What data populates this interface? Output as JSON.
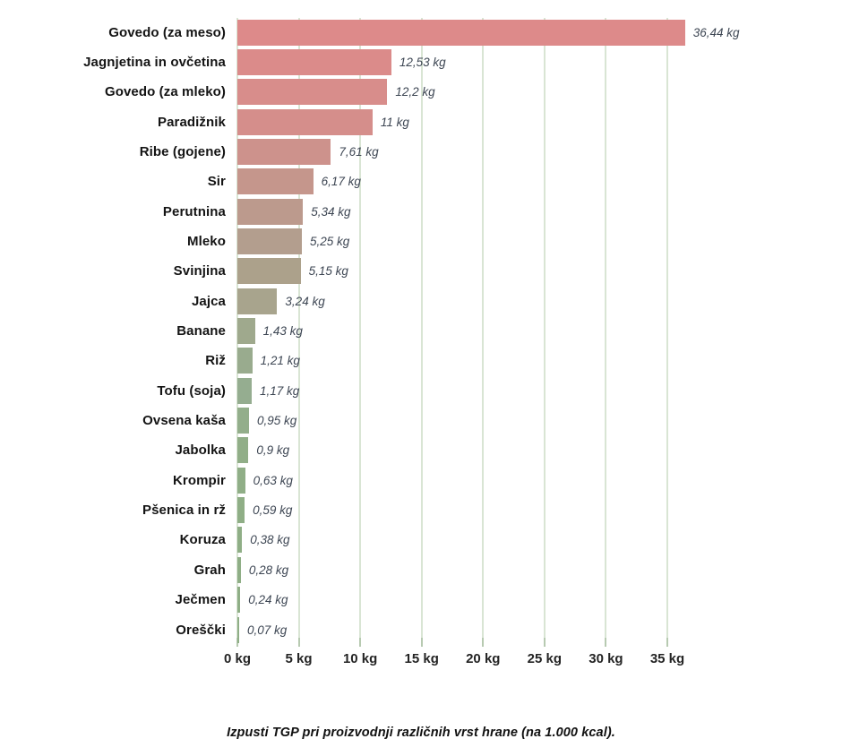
{
  "caption": "Izpusti TGP pri proizvodnji različnih vrst hrane (na 1.000 kcal).",
  "chart_data": {
    "type": "bar",
    "orientation": "horizontal",
    "title": "",
    "caption": "Izpusti TGP pri proizvodnji različnih vrst hrane (na 1.000 kcal).",
    "xlabel": "",
    "ylabel": "",
    "unit": "kg",
    "xlim": [
      0,
      36.8
    ],
    "grid": true,
    "categories": [
      "Govedo (za meso)",
      "Jagnjetina in ovčetina",
      "Govedo (za mleko)",
      "Paradižnik",
      "Ribe (gojene)",
      "Sir",
      "Perutnina",
      "Mleko",
      "Svinjina",
      "Jajca",
      "Banane",
      "Riž",
      "Tofu (soja)",
      "Ovsena kaša",
      "Jabolka",
      "Krompir",
      "Pšenica in rž",
      "Koruza",
      "Grah",
      "Ječmen",
      "Oreščki"
    ],
    "values": [
      36.44,
      12.53,
      12.2,
      11,
      7.61,
      6.17,
      5.34,
      5.25,
      5.15,
      3.24,
      1.43,
      1.21,
      1.17,
      0.95,
      0.9,
      0.63,
      0.59,
      0.38,
      0.28,
      0.24,
      0.07
    ],
    "value_labels": [
      "36,44 kg",
      "12,53 kg",
      "12,2 kg",
      "11 kg",
      "7,61 kg",
      "6,17 kg",
      "5,34 kg",
      "5,25 kg",
      "5,15 kg",
      "3,24 kg",
      "1,43 kg",
      "1,21 kg",
      "1,17 kg",
      "0,95 kg",
      "0,9 kg",
      "0,63 kg",
      "0,59 kg",
      "0,38 kg",
      "0,28 kg",
      "0,24 kg",
      "0,07 kg"
    ],
    "bar_colors": [
      "#dd8a8a",
      "#db8b8a",
      "#d88d8b",
      "#d58e8b",
      "#cd928c",
      "#c5968c",
      "#bc9a8d",
      "#b39e8e",
      "#aca18b",
      "#a8a48d",
      "#9fa98d",
      "#99ab8e",
      "#95ad90",
      "#93ae8b",
      "#91ae88",
      "#90ae87",
      "#8fae86",
      "#8fae86",
      "#8fae86",
      "#8fae86",
      "#8fae86"
    ],
    "x_ticks": [
      0,
      5,
      10,
      15,
      20,
      25,
      30,
      35
    ],
    "x_tick_labels": [
      "0 kg",
      "5 kg",
      "10 kg",
      "15 kg",
      "20 kg",
      "25 kg",
      "30 kg",
      "35 kg"
    ],
    "gridline_color": "#d9e5d4",
    "tick_color": "#b7cab1",
    "category_label_color": "#141414",
    "value_label_color": "#3d4653",
    "axis_label_color": "#242424",
    "legend": false
  }
}
